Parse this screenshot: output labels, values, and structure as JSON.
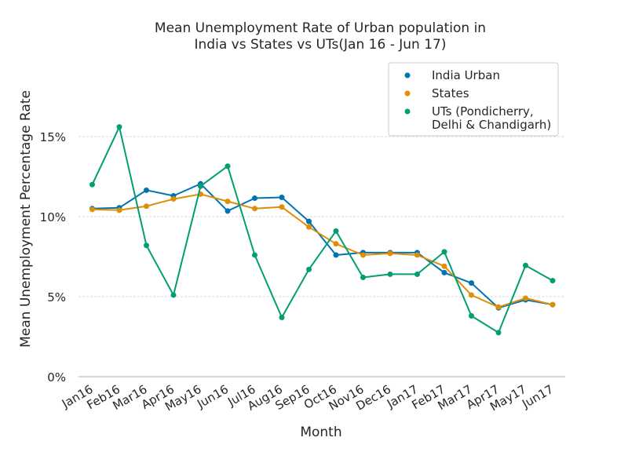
{
  "chart_data": {
    "type": "line",
    "title_lines": [
      "Mean Unemployment Rate of Urban population in",
      "India vs States vs UTs(Jan 16 - Jun 17)"
    ],
    "xlabel": "Month",
    "ylabel": "Mean Unemployment Percentage Rate",
    "categories": [
      "Jan16",
      "Feb16",
      "Mar16",
      "Apr16",
      "May16",
      "Jun16",
      "Jul16",
      "Aug16",
      "Sep16",
      "Oct16",
      "Nov16",
      "Dec16",
      "Jan17",
      "Feb17",
      "Mar17",
      "Apr17",
      "May17",
      "Jun17"
    ],
    "y_ticks": [
      0,
      5,
      10,
      15
    ],
    "y_tick_labels": [
      "0%",
      "5%",
      "10%",
      "15%"
    ],
    "ylim": [
      -0.1,
      18.4
    ],
    "grid": "horizontal dashed",
    "legend_position": "top-right",
    "series": [
      {
        "name": "India Urban",
        "color": "#0173b2",
        "values": [
          10.5,
          10.55,
          11.65,
          11.3,
          12.05,
          10.35,
          11.15,
          11.2,
          9.7,
          7.6,
          7.75,
          7.75,
          7.75,
          6.5,
          5.85,
          4.3,
          4.8,
          4.5
        ]
      },
      {
        "name": "States",
        "color": "#de8f05",
        "values": [
          10.45,
          10.4,
          10.65,
          11.1,
          11.4,
          10.95,
          10.5,
          10.6,
          9.35,
          8.3,
          7.6,
          7.7,
          7.6,
          6.9,
          5.1,
          4.35,
          4.9,
          4.5
        ]
      },
      {
        "name": "UTs (Pondicherry,\nDelhi & Chandigarh)",
        "legend_lines": [
          "UTs (Pondicherry,",
          "Delhi & Chandigarh)"
        ],
        "color": "#029e73",
        "values": [
          12.0,
          15.6,
          8.2,
          5.1,
          11.9,
          13.15,
          7.6,
          3.7,
          6.7,
          9.1,
          6.2,
          6.4,
          6.4,
          7.8,
          3.8,
          2.75,
          6.95,
          6.0
        ]
      }
    ]
  }
}
